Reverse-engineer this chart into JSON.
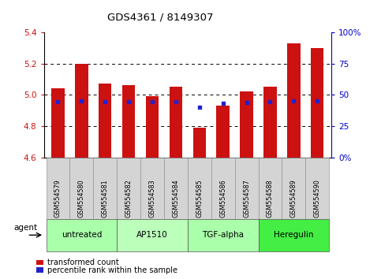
{
  "title": "GDS4361 / 8149307",
  "categories": [
    "GSM554579",
    "GSM554580",
    "GSM554581",
    "GSM554582",
    "GSM554583",
    "GSM554584",
    "GSM554585",
    "GSM554586",
    "GSM554587",
    "GSM554588",
    "GSM554589",
    "GSM554590"
  ],
  "red_values": [
    5.04,
    5.2,
    5.07,
    5.06,
    4.99,
    5.05,
    4.79,
    4.93,
    5.02,
    5.05,
    5.33,
    5.3
  ],
  "blue_values": [
    4.956,
    4.96,
    4.955,
    4.957,
    4.955,
    4.958,
    4.92,
    4.945,
    4.953,
    4.955,
    4.96,
    4.96
  ],
  "ylim_left": [
    4.6,
    5.4
  ],
  "ylim_right": [
    0,
    100
  ],
  "yticks_left": [
    4.6,
    4.8,
    5.0,
    5.2,
    5.4
  ],
  "yticks_right": [
    0,
    25,
    50,
    75,
    100
  ],
  "ytick_labels_right": [
    "0%",
    "25",
    "50",
    "75",
    "100%"
  ],
  "gridlines": [
    4.8,
    5.0,
    5.2
  ],
  "bar_bottom": 4.6,
  "bar_width": 0.55,
  "red_color": "#cc1111",
  "blue_color": "#2222cc",
  "agent_groups": [
    {
      "label": "untreated",
      "start": 0,
      "end": 3,
      "color": "#aaffaa"
    },
    {
      "label": "AP1510",
      "start": 3,
      "end": 6,
      "color": "#bbffbb"
    },
    {
      "label": "TGF-alpha",
      "start": 6,
      "end": 9,
      "color": "#aaffaa"
    },
    {
      "label": "Heregulin",
      "start": 9,
      "end": 12,
      "color": "#44ee44"
    }
  ],
  "legend_items": [
    {
      "label": "transformed count",
      "color": "#cc1111"
    },
    {
      "label": "percentile rank within the sample",
      "color": "#2222cc"
    }
  ],
  "xlabel_agent": "agent",
  "tick_label_color_left": "#cc1111",
  "tick_label_color_right": "#0000cc"
}
